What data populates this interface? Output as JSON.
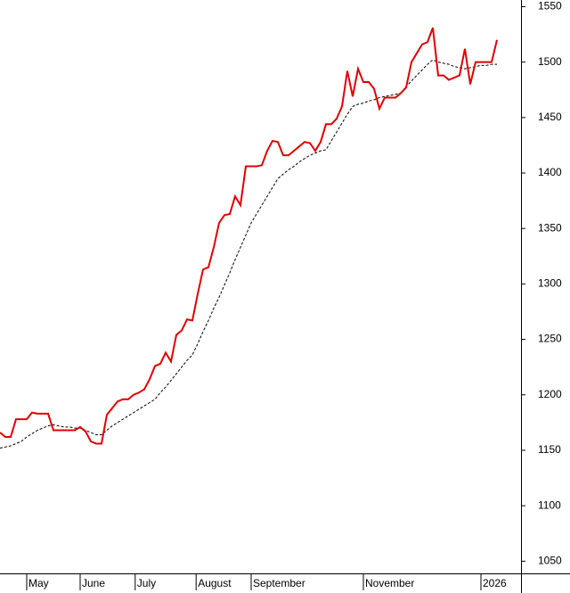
{
  "chart_data": {
    "type": "line",
    "xlim": [
      0,
      97.5
    ],
    "ylim": [
      1039,
      1556
    ],
    "yticks": [
      1050,
      1100,
      1150,
      1200,
      1250,
      1300,
      1350,
      1400,
      1450,
      1500,
      1550
    ],
    "xticks": [
      {
        "value": 5,
        "label": "May"
      },
      {
        "value": 15,
        "label": "June"
      },
      {
        "value": 25.3,
        "label": "July"
      },
      {
        "value": 36.7,
        "label": "August"
      },
      {
        "value": 47,
        "label": "September"
      },
      {
        "value": 68,
        "label": "November"
      },
      {
        "value": 90,
        "label": "2026"
      }
    ],
    "series": [
      {
        "color": "#e00000",
        "dash": false,
        "values": [
          1166,
          1162,
          1162,
          1178,
          1178,
          1178,
          1184,
          1183,
          1183,
          1183,
          1168,
          1168,
          1168,
          1168,
          1168,
          1171,
          1167,
          1158,
          1156,
          1156,
          1182,
          1188,
          1194,
          1196,
          1196,
          1200,
          1202,
          1205,
          1214,
          1226,
          1228,
          1238,
          1230,
          1254,
          1258,
          1268,
          1267,
          1291,
          1313,
          1315,
          1333,
          1355,
          1362,
          1363,
          1379,
          1371,
          1406,
          1406,
          1406,
          1407,
          1420,
          1429,
          1428,
          1416,
          1416,
          1420,
          1424,
          1428,
          1427,
          1420,
          1428,
          1444,
          1444,
          1449,
          1460,
          1492,
          1469,
          1494,
          1482,
          1482,
          1476,
          1458,
          1468,
          1468,
          1468,
          1472,
          1477,
          1500,
          1508,
          1516,
          1518,
          1531,
          1488,
          1488,
          1484,
          1486,
          1488,
          1512,
          1480,
          1500,
          1500,
          1500,
          1500,
          1520
        ]
      },
      {
        "color": "#000000",
        "dash": true,
        "values": [
          1152,
          1153,
          1154,
          1156,
          1158,
          1162,
          1165,
          1168,
          1170,
          1172,
          1173,
          1172,
          1171,
          1171,
          1170,
          1170,
          1168,
          1166,
          1164,
          1164,
          1168,
          1172,
          1175,
          1178,
          1181,
          1184,
          1187,
          1190,
          1193,
          1196,
          1202,
          1207,
          1213,
          1219,
          1225,
          1231,
          1236,
          1246,
          1257,
          1267,
          1278,
          1288,
          1299,
          1310,
          1322,
          1333,
          1344,
          1355,
          1363,
          1371,
          1379,
          1387,
          1395,
          1399,
          1403,
          1406,
          1410,
          1413,
          1416,
          1418,
          1420,
          1421,
          1429,
          1437,
          1445,
          1453,
          1460,
          1462,
          1463,
          1465,
          1466,
          1468,
          1469,
          1470,
          1471,
          1472,
          1478,
          1483,
          1488,
          1493,
          1498,
          1502,
          1500,
          1499,
          1498,
          1496,
          1495,
          1494,
          1495,
          1496,
          1497,
          1497,
          1498,
          1498
        ]
      }
    ]
  }
}
